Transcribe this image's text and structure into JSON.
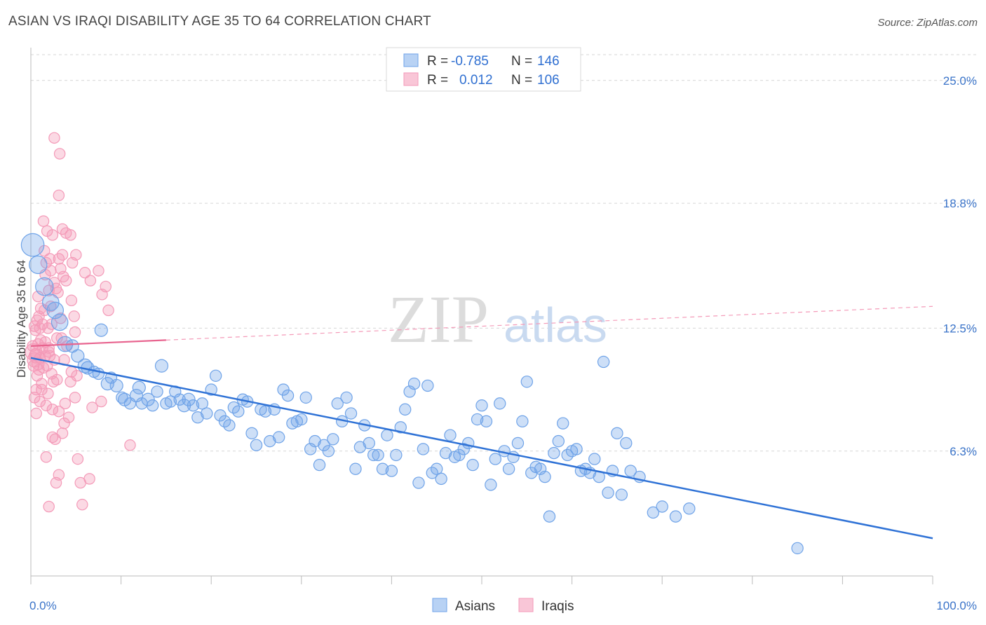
{
  "title": "ASIAN VS IRAQI DISABILITY AGE 35 TO 64 CORRELATION CHART",
  "source": "Source: ZipAtlas.com",
  "watermark": {
    "zip": "ZIP",
    "atlas": "atlas"
  },
  "colors": {
    "asians": "#6fa3e8",
    "asians_line": "#2f72d6",
    "iraqis": "#f49ab8",
    "iraqis_line": "#e8648f",
    "axis_text": "#3b74c9"
  },
  "legend": {
    "rows": [
      {
        "r_label": "R =",
        "r_value": "-0.785",
        "n_label": "N =",
        "n_value": "146"
      },
      {
        "r_label": "R =",
        "r_value": "0.012",
        "n_label": "N =",
        "n_value": "106"
      }
    ]
  },
  "bottom_legend": {
    "asians": "Asians",
    "iraqis": "Iraqis"
  },
  "chart_data": {
    "type": "scatter",
    "title": "ASIAN VS IRAQI DISABILITY AGE 35 TO 64 CORRELATION CHART",
    "xlabel": "",
    "ylabel": "Disability Age 35 to 64",
    "xlim": [
      0,
      100
    ],
    "ylim": [
      0,
      26.3
    ],
    "x_tick_labels": [
      "0.0%",
      "100.0%"
    ],
    "y_ticks": [
      6.3,
      12.5,
      18.8,
      25.0
    ],
    "y_tick_labels": [
      "6.3%",
      "12.5%",
      "18.8%",
      "25.0%"
    ],
    "grid": true,
    "legend_position": "top-center",
    "series": [
      {
        "name": "Asians",
        "r": -0.785,
        "n": 146,
        "trend": {
          "x": [
            0,
            100
          ],
          "y": [
            11.0,
            1.9
          ]
        },
        "points": [
          [
            0.2,
            16.7,
            18
          ],
          [
            0.8,
            15.7,
            14
          ],
          [
            1.5,
            14.6,
            14
          ],
          [
            2.2,
            13.8,
            13
          ],
          [
            2.7,
            13.4,
            13
          ],
          [
            3.2,
            12.8,
            13
          ],
          [
            3.8,
            11.7,
            12
          ],
          [
            4.6,
            11.6,
            10
          ],
          [
            5.2,
            11.1,
            10
          ],
          [
            6.0,
            10.6,
            11
          ],
          [
            6.3,
            10.5,
            10
          ],
          [
            7.0,
            10.3,
            9
          ],
          [
            7.5,
            10.2,
            9
          ],
          [
            7.8,
            12.4,
            10
          ],
          [
            8.5,
            9.7,
            10
          ],
          [
            8.9,
            10.0,
            9
          ],
          [
            9.5,
            9.6,
            10
          ],
          [
            10.1,
            9.0,
            9
          ],
          [
            10.4,
            8.9,
            10
          ],
          [
            11.0,
            8.7,
            9
          ],
          [
            11.7,
            9.1,
            10
          ],
          [
            12.0,
            9.5,
            10
          ],
          [
            12.3,
            8.7,
            9
          ],
          [
            13.0,
            8.9,
            10
          ],
          [
            13.5,
            8.6,
            9
          ],
          [
            14.0,
            9.3,
            9
          ],
          [
            14.5,
            10.6,
            10
          ],
          [
            15.0,
            8.7,
            9
          ],
          [
            15.5,
            8.8,
            9
          ],
          [
            16.0,
            9.3,
            9
          ],
          [
            16.5,
            8.9,
            9
          ],
          [
            17.0,
            8.6,
            10
          ],
          [
            17.5,
            8.9,
            10
          ],
          [
            18.0,
            8.6,
            9
          ],
          [
            18.5,
            8.0,
            9
          ],
          [
            19.0,
            8.7,
            9
          ],
          [
            19.5,
            8.2,
            9
          ],
          [
            20.0,
            9.4,
            9
          ],
          [
            20.5,
            10.1,
            9
          ],
          [
            21.0,
            8.1,
            9
          ],
          [
            21.5,
            7.8,
            9
          ],
          [
            22.0,
            7.6,
            9
          ],
          [
            22.5,
            8.5,
            9
          ],
          [
            23.0,
            8.3,
            9
          ],
          [
            23.5,
            8.9,
            9
          ],
          [
            24.0,
            8.8,
            9
          ],
          [
            24.5,
            7.2,
            9
          ],
          [
            25.0,
            6.6,
            9
          ],
          [
            25.5,
            8.4,
            9
          ],
          [
            26.0,
            8.3,
            9
          ],
          [
            26.5,
            6.8,
            9
          ],
          [
            27.0,
            8.4,
            9
          ],
          [
            27.5,
            7.0,
            9
          ],
          [
            28.0,
            9.4,
            9
          ],
          [
            28.5,
            9.1,
            9
          ],
          [
            29.0,
            7.7,
            9
          ],
          [
            29.5,
            7.8,
            9
          ],
          [
            30.0,
            7.9,
            9
          ],
          [
            30.5,
            9.0,
            9
          ],
          [
            31.0,
            6.4,
            9
          ],
          [
            31.5,
            6.8,
            9
          ],
          [
            32.0,
            5.6,
            9
          ],
          [
            32.5,
            6.6,
            9
          ],
          [
            33.0,
            6.3,
            9
          ],
          [
            33.5,
            6.9,
            9
          ],
          [
            34.0,
            8.7,
            9
          ],
          [
            34.5,
            7.8,
            9
          ],
          [
            35.0,
            9.0,
            9
          ],
          [
            35.5,
            8.2,
            9
          ],
          [
            36.0,
            5.4,
            9
          ],
          [
            36.5,
            6.5,
            9
          ],
          [
            37.0,
            7.6,
            9
          ],
          [
            37.5,
            6.7,
            9
          ],
          [
            38.0,
            6.1,
            9
          ],
          [
            38.5,
            6.1,
            9
          ],
          [
            39.0,
            5.4,
            9
          ],
          [
            39.5,
            7.1,
            9
          ],
          [
            40.0,
            5.3,
            9
          ],
          [
            40.5,
            6.1,
            9
          ],
          [
            41.0,
            7.5,
            9
          ],
          [
            41.5,
            8.4,
            9
          ],
          [
            42.0,
            9.3,
            9
          ],
          [
            42.5,
            9.7,
            9
          ],
          [
            43.0,
            4.7,
            9
          ],
          [
            43.5,
            6.4,
            9
          ],
          [
            44.0,
            9.6,
            9
          ],
          [
            44.5,
            5.2,
            9
          ],
          [
            45.0,
            5.4,
            9
          ],
          [
            45.5,
            4.9,
            9
          ],
          [
            46.0,
            6.2,
            9
          ],
          [
            46.5,
            7.1,
            9
          ],
          [
            47.0,
            6.0,
            9
          ],
          [
            47.5,
            6.1,
            9
          ],
          [
            48.0,
            6.4,
            9
          ],
          [
            48.5,
            6.7,
            9
          ],
          [
            49.0,
            5.6,
            9
          ],
          [
            49.5,
            7.9,
            9
          ],
          [
            50.0,
            8.6,
            9
          ],
          [
            50.5,
            7.8,
            9
          ],
          [
            51.0,
            4.6,
            9
          ],
          [
            51.5,
            5.9,
            9
          ],
          [
            52.0,
            8.7,
            9
          ],
          [
            52.5,
            6.3,
            9
          ],
          [
            53.0,
            5.4,
            9
          ],
          [
            53.5,
            6.0,
            9
          ],
          [
            54.0,
            6.7,
            9
          ],
          [
            54.5,
            7.8,
            9
          ],
          [
            55.0,
            9.8,
            9
          ],
          [
            55.5,
            5.2,
            9
          ],
          [
            56.0,
            5.5,
            9
          ],
          [
            56.5,
            5.4,
            9
          ],
          [
            57.0,
            5.0,
            9
          ],
          [
            57.5,
            3.0,
            9
          ],
          [
            58.0,
            6.2,
            9
          ],
          [
            58.5,
            6.8,
            9
          ],
          [
            59.0,
            7.7,
            9
          ],
          [
            59.5,
            6.1,
            9
          ],
          [
            60.0,
            6.3,
            9
          ],
          [
            60.5,
            6.4,
            9
          ],
          [
            61.0,
            5.3,
            9
          ],
          [
            61.5,
            5.4,
            9
          ],
          [
            62.0,
            5.2,
            9
          ],
          [
            62.5,
            5.9,
            9
          ],
          [
            63.0,
            5.0,
            9
          ],
          [
            63.5,
            10.8,
            9
          ],
          [
            64.0,
            4.2,
            9
          ],
          [
            64.5,
            5.3,
            9
          ],
          [
            65.0,
            7.2,
            9
          ],
          [
            65.5,
            4.1,
            9
          ],
          [
            66.0,
            6.7,
            9
          ],
          [
            66.5,
            5.3,
            9
          ],
          [
            67.5,
            5.0,
            9
          ],
          [
            69.0,
            3.2,
            9
          ],
          [
            70.0,
            3.5,
            9
          ],
          [
            71.5,
            3.0,
            9
          ],
          [
            73.0,
            3.4,
            9
          ],
          [
            85.0,
            1.4,
            9
          ]
        ]
      },
      {
        "name": "Iraqis",
        "r": 0.012,
        "n": 106,
        "trend": {
          "x": [
            0,
            100
          ],
          "y": [
            11.6,
            13.6
          ]
        },
        "trend_solid_to_x": 15,
        "points": [
          [
            0.3,
            11.3,
            14
          ],
          [
            0.4,
            10.9,
            12
          ],
          [
            0.6,
            11.1,
            12
          ],
          [
            0.8,
            10.7,
            10
          ],
          [
            0.5,
            12.4,
            9
          ],
          [
            1.0,
            12.5,
            9
          ],
          [
            1.3,
            11.5,
            9
          ],
          [
            1.6,
            11.1,
            9
          ],
          [
            2.0,
            11.3,
            9
          ],
          [
            0.4,
            12.6,
            9
          ],
          [
            0.9,
            13.1,
            9
          ],
          [
            1.5,
            13.4,
            9
          ],
          [
            2.3,
            12.7,
            9
          ],
          [
            0.7,
            10.1,
            9
          ],
          [
            1.2,
            9.7,
            9
          ],
          [
            1.9,
            9.2,
            9
          ],
          [
            2.5,
            9.8,
            9
          ],
          [
            0.6,
            9.4,
            9
          ],
          [
            1.0,
            8.8,
            9
          ],
          [
            1.7,
            8.6,
            9
          ],
          [
            2.4,
            8.4,
            9
          ],
          [
            0.6,
            8.2,
            9
          ],
          [
            1.6,
            15.2,
            9
          ],
          [
            2.2,
            15.4,
            9
          ],
          [
            2.6,
            14.8,
            9
          ],
          [
            3.1,
            16.0,
            9
          ],
          [
            3.5,
            16.2,
            9
          ],
          [
            1.4,
            17.9,
            9
          ],
          [
            2.4,
            17.2,
            9
          ],
          [
            3.5,
            17.5,
            9
          ],
          [
            1.7,
            15.8,
            9
          ],
          [
            2.8,
            14.5,
            9
          ],
          [
            3.2,
            21.3,
            9
          ],
          [
            2.6,
            22.1,
            9
          ],
          [
            3.1,
            19.2,
            9
          ],
          [
            1.8,
            17.4,
            9
          ],
          [
            3.9,
            17.3,
            9
          ],
          [
            4.4,
            17.2,
            9
          ],
          [
            2.1,
            16.0,
            9
          ],
          [
            3.6,
            15.1,
            9
          ],
          [
            3.0,
            14.3,
            9
          ],
          [
            2.2,
            13.6,
            9
          ],
          [
            3.9,
            14.9,
            9
          ],
          [
            4.5,
            13.9,
            9
          ],
          [
            5.0,
            16.2,
            9
          ],
          [
            4.6,
            15.8,
            9
          ],
          [
            6.0,
            15.3,
            9
          ],
          [
            6.6,
            14.9,
            9
          ],
          [
            7.5,
            15.4,
            9
          ],
          [
            7.9,
            14.2,
            9
          ],
          [
            8.3,
            14.6,
            9
          ],
          [
            8.6,
            13.4,
            9
          ],
          [
            4.8,
            13.1,
            9
          ],
          [
            4.9,
            12.3,
            9
          ],
          [
            3.4,
            12.0,
            9
          ],
          [
            4.0,
            11.6,
            9
          ],
          [
            3.7,
            10.9,
            9
          ],
          [
            4.5,
            10.3,
            9
          ],
          [
            5.1,
            10.1,
            9
          ],
          [
            4.4,
            9.8,
            9
          ],
          [
            4.9,
            9.0,
            9
          ],
          [
            3.8,
            8.7,
            9
          ],
          [
            3.1,
            8.3,
            9
          ],
          [
            4.2,
            8.0,
            9
          ],
          [
            3.7,
            7.7,
            9
          ],
          [
            3.5,
            7.2,
            9
          ],
          [
            2.4,
            7.0,
            9
          ],
          [
            2.7,
            6.9,
            9
          ],
          [
            1.7,
            6.0,
            9
          ],
          [
            5.2,
            5.9,
            9
          ],
          [
            2.8,
            4.7,
            9
          ],
          [
            3.1,
            5.1,
            9
          ],
          [
            5.5,
            4.7,
            9
          ],
          [
            6.5,
            4.9,
            9
          ],
          [
            2.0,
            3.5,
            9
          ],
          [
            5.7,
            3.6,
            9
          ],
          [
            7.8,
            8.8,
            9
          ],
          [
            6.8,
            8.5,
            9
          ],
          [
            11.0,
            6.6,
            9
          ],
          [
            1.1,
            11.9,
            9
          ],
          [
            1.3,
            12.7,
            9
          ],
          [
            0.8,
            11.7,
            9
          ],
          [
            1.9,
            12.5,
            9
          ],
          [
            2.1,
            11.1,
            9
          ],
          [
            0.5,
            11.2,
            9
          ],
          [
            1.4,
            10.5,
            9
          ],
          [
            0.9,
            10.4,
            9
          ],
          [
            1.8,
            10.6,
            9
          ],
          [
            2.6,
            10.9,
            9
          ],
          [
            0.3,
            10.6,
            9
          ],
          [
            1.1,
            13.5,
            9
          ],
          [
            0.8,
            14.1,
            9
          ],
          [
            2.9,
            12.0,
            9
          ],
          [
            2.0,
            14.4,
            9
          ],
          [
            1.5,
            16.4,
            9
          ],
          [
            3.3,
            15.5,
            9
          ],
          [
            0.7,
            12.9,
            9
          ],
          [
            1.6,
            11.8,
            9
          ],
          [
            2.3,
            10.2,
            9
          ],
          [
            1.2,
            9.4,
            9
          ],
          [
            2.9,
            9.9,
            9
          ],
          [
            0.4,
            9.0,
            9
          ],
          [
            3.3,
            13.0,
            9
          ],
          [
            0.2,
            11.6,
            9
          ],
          [
            1.0,
            11.0,
            9
          ],
          [
            2.0,
            11.5,
            9
          ]
        ]
      }
    ]
  }
}
